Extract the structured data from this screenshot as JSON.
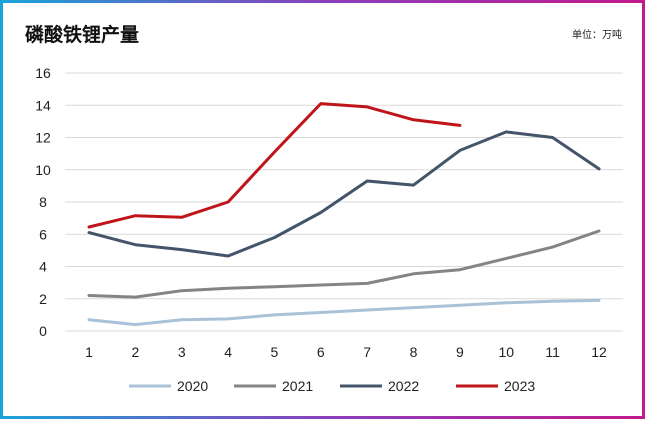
{
  "chart_data": {
    "type": "line",
    "title": "磷酸铁锂产量",
    "unit_label": "单位：万吨",
    "x": [
      1,
      2,
      3,
      4,
      5,
      6,
      7,
      8,
      9,
      10,
      11,
      12
    ],
    "ylim": [
      0,
      16
    ],
    "yticks": [
      0,
      2,
      4,
      6,
      8,
      10,
      12,
      14,
      16
    ],
    "grid": true,
    "legend_position": "bottom",
    "series": [
      {
        "name": "2020",
        "color": "#a9c1d9",
        "values": [
          0.7,
          0.4,
          0.7,
          0.75,
          1.0,
          1.15,
          1.3,
          1.45,
          1.6,
          1.75,
          1.85,
          1.9
        ]
      },
      {
        "name": "2021",
        "color": "#848484",
        "values": [
          2.2,
          2.1,
          2.5,
          2.65,
          2.75,
          2.85,
          2.95,
          3.55,
          3.8,
          4.5,
          5.2,
          6.2
        ]
      },
      {
        "name": "2022",
        "color": "#44546a",
        "values": [
          6.1,
          5.35,
          5.05,
          4.65,
          5.8,
          7.35,
          9.3,
          9.05,
          11.2,
          12.35,
          12.0,
          10.05
        ]
      },
      {
        "name": "2023",
        "color": "#c0141b",
        "values": [
          6.45,
          7.15,
          7.05,
          8.0,
          11.1,
          14.1,
          13.9,
          13.1,
          12.75,
          null,
          null,
          null
        ]
      }
    ]
  }
}
